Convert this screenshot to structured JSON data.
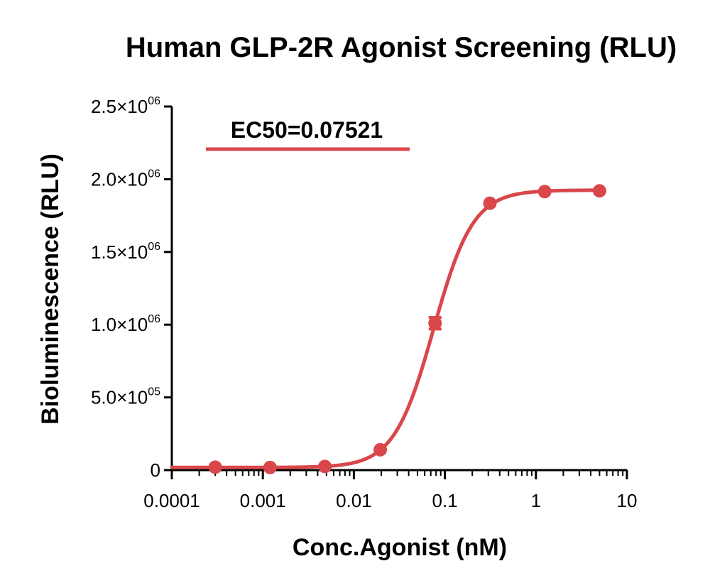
{
  "chart_data": {
    "type": "scatter",
    "title": "Human GLP-2R Agonist Screening (RLU)",
    "xlabel": "Conc.Agonist (nM)",
    "ylabel": "Bioluminescence (RLU)",
    "x_scale": "log",
    "xlim": [
      0.0001,
      10
    ],
    "ylim": [
      0,
      2500000
    ],
    "x_ticks": [
      {
        "value": 0.0001,
        "label": "0.0001"
      },
      {
        "value": 0.001,
        "label": "0.001"
      },
      {
        "value": 0.01,
        "label": "0.01"
      },
      {
        "value": 0.1,
        "label": "0.1"
      },
      {
        "value": 1,
        "label": "1"
      },
      {
        "value": 10,
        "label": "10"
      }
    ],
    "y_ticks": [
      {
        "value": 0,
        "mantissa": "0",
        "exponent": ""
      },
      {
        "value": 500000,
        "mantissa": "5.0×10",
        "exponent": "05"
      },
      {
        "value": 1000000,
        "mantissa": "1.0×10",
        "exponent": "06"
      },
      {
        "value": 1500000,
        "mantissa": "1.5×10",
        "exponent": "06"
      },
      {
        "value": 2000000,
        "mantissa": "2.0×10",
        "exponent": "06"
      },
      {
        "value": 2500000,
        "mantissa": "2.5×10",
        "exponent": "06"
      }
    ],
    "series": [
      {
        "name": "EC50=0.07521",
        "color": "#d9474b",
        "points": [
          {
            "x": 0.0003,
            "y": 20000
          },
          {
            "x": 0.0012,
            "y": 18000
          },
          {
            "x": 0.0048,
            "y": 25000
          },
          {
            "x": 0.0195,
            "y": 140000
          },
          {
            "x": 0.078,
            "y": 1010000,
            "err": 40000
          },
          {
            "x": 0.3125,
            "y": 1835000
          },
          {
            "x": 1.25,
            "y": 1915000
          },
          {
            "x": 5,
            "y": 1920000
          }
        ],
        "fit": {
          "bottom": 18000,
          "top": 1925000,
          "ec50": 0.07521,
          "hill": 2.0
        }
      }
    ],
    "legend": {
      "position": "top-left",
      "label": "EC50=0.07521"
    },
    "grid": false
  }
}
